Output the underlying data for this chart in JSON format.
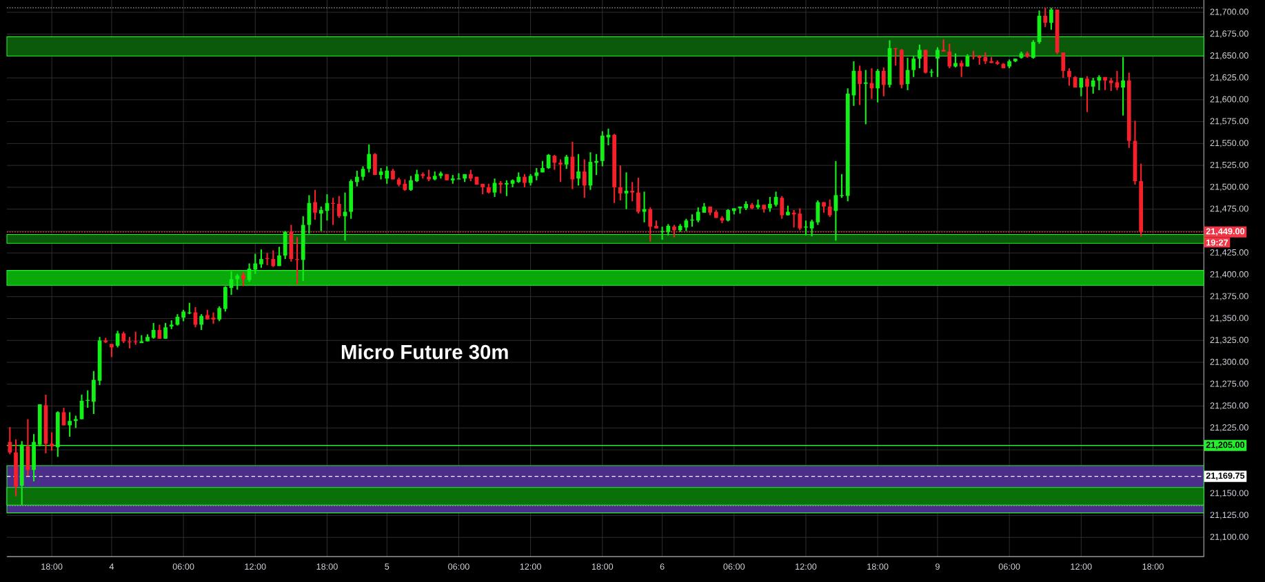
{
  "chart_data": {
    "type": "candlestick",
    "title": "Micro Future 30m",
    "categories": [
      null,
      null,
      null,
      null,
      null,
      null,
      null,
      "18:00",
      null,
      null,
      null,
      null,
      null,
      null,
      null,
      null,
      null,
      "4",
      null,
      null,
      null,
      null,
      null,
      null,
      null,
      null,
      null,
      null,
      null,
      "06:00",
      null,
      null,
      null,
      null,
      null,
      null,
      null,
      null,
      null,
      null,
      null,
      "12:00",
      null,
      null,
      null,
      null,
      null,
      null,
      null,
      null,
      null,
      null,
      null,
      "18:00",
      null,
      null,
      null,
      null,
      null,
      null,
      null,
      null,
      null,
      "5",
      null,
      null,
      null,
      null,
      null,
      null,
      null,
      null,
      null,
      null,
      null,
      "06:00",
      null,
      null,
      null,
      null,
      null,
      null,
      null,
      null,
      null,
      null,
      null,
      "12:00",
      null,
      null,
      null,
      null,
      null,
      null,
      null,
      null,
      null,
      null,
      null,
      "18:00",
      null,
      null,
      null,
      null,
      null,
      null,
      null,
      null,
      null,
      "6",
      null,
      null,
      null,
      null,
      null,
      null,
      null,
      null,
      null,
      null,
      null,
      "06:00",
      null,
      null,
      null,
      null,
      null,
      null,
      null,
      null,
      null,
      null,
      null,
      "12:00",
      null,
      null,
      null,
      null,
      null,
      null,
      null,
      null,
      null,
      null,
      null,
      "18:00",
      null,
      null,
      null,
      null,
      null,
      null,
      null,
      null,
      null,
      "9",
      null,
      null,
      null,
      null,
      null,
      null,
      null,
      null,
      null,
      null,
      null,
      "06:00",
      null,
      null,
      null,
      null,
      null,
      null,
      null,
      null,
      null,
      null,
      null,
      "12:00",
      null,
      null,
      null,
      null,
      null,
      null,
      null,
      null,
      null,
      null,
      null,
      "18:00",
      null,
      null,
      null,
      null,
      null,
      null,
      null,
      null
    ],
    "ohlc": [
      [
        21209,
        21226,
        21195,
        21197
      ],
      [
        21197,
        21212,
        21147,
        21158
      ],
      [
        21159,
        21210,
        21137,
        21206
      ],
      [
        21204,
        21235,
        21170,
        21177
      ],
      [
        21177,
        21218,
        21164,
        21209
      ],
      [
        21206,
        21252,
        21204,
        21252
      ],
      [
        21251,
        21263,
        21196,
        21207
      ],
      [
        21207,
        21220,
        21199,
        21204
      ],
      [
        21203,
        21244,
        21192,
        21243
      ],
      [
        21243,
        21248,
        21228,
        21228
      ],
      [
        21228,
        21243,
        21215,
        21233
      ],
      [
        21233,
        21239,
        21225,
        21235
      ],
      [
        21235,
        21263,
        21235,
        21256
      ],
      [
        21256,
        21268,
        21248,
        21257
      ],
      [
        21255,
        21290,
        21241,
        21280
      ],
      [
        21279,
        21329,
        21274,
        21325
      ],
      [
        21325,
        21328,
        21322,
        21323
      ],
      [
        21321,
        21321,
        21306,
        21317
      ],
      [
        21319,
        21336,
        21317,
        21333
      ],
      [
        21333,
        21335,
        21322,
        21324
      ],
      [
        21324,
        21329,
        21316,
        21323
      ],
      [
        21324,
        21335,
        21320,
        21323
      ],
      [
        21322,
        21331,
        21322,
        21324
      ],
      [
        21324,
        21332,
        21324,
        21329
      ],
      [
        21328,
        21345,
        21327,
        21337
      ],
      [
        21337,
        21343,
        21327,
        21327
      ],
      [
        21327,
        21345,
        21327,
        21340
      ],
      [
        21341,
        21348,
        21338,
        21343
      ],
      [
        21343,
        21355,
        21342,
        21352
      ],
      [
        21351,
        21360,
        21347,
        21358
      ],
      [
        21356,
        21368,
        21355,
        21357
      ],
      [
        21357,
        21363,
        21340,
        21343
      ],
      [
        21343,
        21355,
        21337,
        21353
      ],
      [
        21354,
        21360,
        21349,
        21349
      ],
      [
        21351,
        21357,
        21344,
        21349
      ],
      [
        21349,
        21364,
        21347,
        21362
      ],
      [
        21361,
        21387,
        21358,
        21386
      ],
      [
        21385,
        21404,
        21377,
        21395
      ],
      [
        21395,
        21401,
        21383,
        21399
      ],
      [
        21400,
        21403,
        21387,
        21395
      ],
      [
        21394,
        21413,
        21392,
        21407
      ],
      [
        21406,
        21424,
        21401,
        21413
      ],
      [
        21412,
        21429,
        21408,
        21418
      ],
      [
        21419,
        21425,
        21411,
        21418
      ],
      [
        21418,
        21428,
        21409,
        21410
      ],
      [
        21410,
        21432,
        21410,
        21422
      ],
      [
        21422,
        21450,
        21418,
        21449
      ],
      [
        21449,
        21457,
        21415,
        21418
      ],
      [
        21418,
        21443,
        21389,
        21417
      ],
      [
        21417,
        21467,
        21393,
        21457
      ],
      [
        21457,
        21491,
        21447,
        21482
      ],
      [
        21483,
        21497,
        21463,
        21471
      ],
      [
        21470,
        21478,
        21450,
        21474
      ],
      [
        21473,
        21492,
        21462,
        21482
      ],
      [
        21482,
        21488,
        21457,
        21481
      ],
      [
        21481,
        21490,
        21465,
        21467
      ],
      [
        21467,
        21494,
        21439,
        21472
      ],
      [
        21472,
        21509,
        21464,
        21507
      ],
      [
        21506,
        21519,
        21501,
        21512
      ],
      [
        21512,
        21524,
        21508,
        21521
      ],
      [
        21521,
        21549,
        21517,
        21538
      ],
      [
        21538,
        21539,
        21514,
        21514
      ],
      [
        21514,
        21522,
        21509,
        21518
      ],
      [
        21510,
        21524,
        21504,
        21519
      ],
      [
        21519,
        21521,
        21509,
        21509
      ],
      [
        21509,
        21511,
        21501,
        21503
      ],
      [
        21504,
        21509,
        21496,
        21497
      ],
      [
        21497,
        21513,
        21496,
        21508
      ],
      [
        21507,
        21520,
        21506,
        21515
      ],
      [
        21515,
        21517,
        21510,
        21513
      ],
      [
        21512,
        21520,
        21507,
        21509
      ],
      [
        21509,
        21518,
        21508,
        21513
      ],
      [
        21513,
        21518,
        21510,
        21516
      ],
      [
        21515,
        21515,
        21508,
        21508
      ],
      [
        21508,
        21514,
        21504,
        21510
      ],
      [
        21509,
        21516,
        21509,
        21510
      ],
      [
        21510,
        21515,
        21506,
        21515
      ],
      [
        21515,
        21520,
        21507,
        21510
      ],
      [
        21512,
        21512,
        21503,
        21503
      ],
      [
        21504,
        21504,
        21492,
        21500
      ],
      [
        21500,
        21504,
        21493,
        21494
      ],
      [
        21494,
        21510,
        21489,
        21505
      ],
      [
        21505,
        21507,
        21493,
        21503
      ],
      [
        21504,
        21508,
        21490,
        21504
      ],
      [
        21504,
        21509,
        21500,
        21508
      ],
      [
        21506,
        21517,
        21505,
        21512
      ],
      [
        21512,
        21515,
        21500,
        21505
      ],
      [
        21505,
        21515,
        21502,
        21513
      ],
      [
        21513,
        21522,
        21508,
        21517
      ],
      [
        21517,
        21530,
        21517,
        21522
      ],
      [
        21522,
        21538,
        21521,
        21537
      ],
      [
        21536,
        21537,
        21520,
        21528
      ],
      [
        21528,
        21532,
        21506,
        21526
      ],
      [
        21526,
        21537,
        21521,
        21535
      ],
      [
        21535,
        21552,
        21498,
        21509
      ],
      [
        21510,
        21538,
        21502,
        21518
      ],
      [
        21518,
        21532,
        21488,
        21502
      ],
      [
        21502,
        21540,
        21497,
        21529
      ],
      [
        21528,
        21538,
        21514,
        21530
      ],
      [
        21530,
        21564,
        21524,
        21559
      ],
      [
        21557,
        21567,
        21548,
        21560
      ],
      [
        21560,
        21561,
        21482,
        21500
      ],
      [
        21500,
        21525,
        21485,
        21493
      ],
      [
        21493,
        21517,
        21475,
        21496
      ],
      [
        21496,
        21506,
        21484,
        21494
      ],
      [
        21494,
        21511,
        21470,
        21472
      ],
      [
        21472,
        21495,
        21460,
        21475
      ],
      [
        21475,
        21477,
        21438,
        21455
      ],
      [
        21456,
        21462,
        21453,
        21453
      ],
      [
        21449,
        21455,
        21440,
        21450
      ],
      [
        21449,
        21458,
        21445,
        21456
      ],
      [
        21455,
        21457,
        21443,
        21451
      ],
      [
        21451,
        21458,
        21449,
        21456
      ],
      [
        21454,
        21464,
        21450,
        21462
      ],
      [
        21462,
        21469,
        21455,
        21463
      ],
      [
        21462,
        21477,
        21460,
        21472
      ],
      [
        21471,
        21482,
        21471,
        21478
      ],
      [
        21478,
        21478,
        21468,
        21471
      ],
      [
        21472,
        21474,
        21465,
        21465
      ],
      [
        21465,
        21467,
        21459,
        21462
      ],
      [
        21462,
        21475,
        21461,
        21474
      ],
      [
        21473,
        21476,
        21469,
        21476
      ],
      [
        21476,
        21478,
        21470,
        21478
      ],
      [
        21476,
        21484,
        21474,
        21481
      ],
      [
        21480,
        21482,
        21475,
        21476
      ],
      [
        21477,
        21486,
        21475,
        21480
      ],
      [
        21480,
        21480,
        21471,
        21475
      ],
      [
        21476,
        21489,
        21472,
        21481
      ],
      [
        21480,
        21495,
        21478,
        21489
      ],
      [
        21488,
        21490,
        21464,
        21468
      ],
      [
        21468,
        21479,
        21468,
        21472
      ],
      [
        21471,
        21474,
        21454,
        21469
      ],
      [
        21470,
        21476,
        21451,
        21453
      ],
      [
        21454,
        21462,
        21445,
        21455
      ],
      [
        21453,
        21463,
        21444,
        21461
      ],
      [
        21460,
        21485,
        21457,
        21483
      ],
      [
        21483,
        21483,
        21471,
        21478
      ],
      [
        21478,
        21486,
        21466,
        21468
      ],
      [
        21473,
        21530,
        21439,
        21491
      ],
      [
        21490,
        21515,
        21488,
        21491
      ],
      [
        21490,
        21613,
        21484,
        21607
      ],
      [
        21605,
        21644,
        21593,
        21633
      ],
      [
        21633,
        21639,
        21594,
        21618
      ],
      [
        21619,
        21634,
        21572,
        21619
      ],
      [
        21619,
        21636,
        21601,
        21613
      ],
      [
        21613,
        21635,
        21597,
        21633
      ],
      [
        21633,
        21637,
        21604,
        21617
      ],
      [
        21617,
        21668,
        21614,
        21659
      ],
      [
        21659,
        21659,
        21639,
        21658
      ],
      [
        21657,
        21658,
        21613,
        21617
      ],
      [
        21618,
        21648,
        21611,
        21634
      ],
      [
        21634,
        21650,
        21626,
        21647
      ],
      [
        21647,
        21663,
        21636,
        21657
      ],
      [
        21657,
        21657,
        21630,
        21631
      ],
      [
        21631,
        21635,
        21626,
        21632
      ],
      [
        21647,
        21660,
        21626,
        21657
      ],
      [
        21657,
        21669,
        21655,
        21655
      ],
      [
        21655,
        21664,
        21636,
        21638
      ],
      [
        21638,
        21653,
        21637,
        21642
      ],
      [
        21642,
        21645,
        21626,
        21638
      ],
      [
        21638,
        21652,
        21638,
        21650
      ],
      [
        21650,
        21656,
        21646,
        21649
      ],
      [
        21650,
        21651,
        21640,
        21648
      ],
      [
        21649,
        21654,
        21641,
        21644
      ],
      [
        21644,
        21649,
        21642,
        21642
      ],
      [
        21643,
        21645,
        21640,
        21641
      ],
      [
        21641,
        21642,
        21636,
        21636
      ],
      [
        21638,
        21646,
        21636,
        21644
      ],
      [
        21644,
        21647,
        21643,
        21647
      ],
      [
        21648,
        21655,
        21647,
        21653
      ],
      [
        21653,
        21655,
        21648,
        21649
      ],
      [
        21648,
        21668,
        21647,
        21666
      ],
      [
        21666,
        21702,
        21664,
        21696
      ],
      [
        21696,
        21705,
        21683,
        21688
      ],
      [
        21688,
        21705,
        21680,
        21703
      ],
      [
        21703,
        21703,
        21652,
        21654
      ],
      [
        21654,
        21654,
        21625,
        21633
      ],
      [
        21633,
        21636,
        21616,
        21626
      ],
      [
        21626,
        21627,
        21614,
        21614
      ],
      [
        21614,
        21625,
        21604,
        21625
      ],
      [
        21624,
        21627,
        21586,
        21615
      ],
      [
        21615,
        21625,
        21607,
        21622
      ],
      [
        21622,
        21628,
        21611,
        21626
      ],
      [
        21626,
        21626,
        21611,
        21622
      ],
      [
        21622,
        21625,
        21610,
        21619
      ],
      [
        21620,
        21633,
        21611,
        21614
      ],
      [
        21614,
        21649,
        21582,
        21622
      ],
      [
        21622,
        21631,
        21545,
        21553
      ],
      [
        21553,
        21576,
        21503,
        21507
      ],
      [
        21507,
        21527,
        21444,
        21449
      ],
      null,
      null,
      null,
      null,
      null,
      null,
      null,
      null,
      null,
      null
    ],
    "colors": [
      "#f5202a",
      "#f5202a",
      "#12f018",
      "#f5202a",
      "#12f018",
      "#12f018",
      "#f5202a",
      "#f5202a",
      "#12f018",
      "#f5202a",
      "#12f018",
      "#12f018",
      "#12f018",
      "#12f018",
      "#12f018",
      "#12f018",
      "#f5202a",
      "#f5202a",
      "#12f018",
      "#f5202a",
      "#f5202a",
      "#f5202a",
      "#12f018",
      "#12f018",
      "#12f018",
      "#f5202a",
      "#12f018",
      "#12f018",
      "#12f018",
      "#12f018",
      "#12f018",
      "#f5202a",
      "#12f018",
      "#f5202a",
      "#f5202a",
      "#12f018",
      "#12f018",
      "#12f018",
      "#12f018",
      "#f5202a",
      "#12f018",
      "#12f018",
      "#12f018",
      "#f5202a",
      "#f5202a",
      "#12f018",
      "#12f018",
      "#f5202a",
      "#f5202a",
      "#12f018",
      "#12f018",
      "#f5202a",
      "#12f018",
      "#12f018",
      "#f5202a",
      "#f5202a",
      "#12f018",
      "#12f018",
      "#12f018",
      "#12f018",
      "#12f018",
      "#f5202a",
      "#12f018",
      "#12f018",
      "#f5202a",
      "#f5202a",
      "#f5202a",
      "#12f018",
      "#12f018",
      "#f5202a",
      "#f5202a",
      "#12f018",
      "#12f018",
      "#f5202a",
      "#12f018",
      "#12f018",
      "#12f018",
      "#f5202a",
      "#f5202a",
      "#f5202a",
      "#f5202a",
      "#12f018",
      "#f5202a",
      "#12f018",
      "#12f018",
      "#12f018",
      "#f5202a",
      "#12f018",
      "#12f018",
      "#12f018",
      "#12f018",
      "#f5202a",
      "#f5202a",
      "#12f018",
      "#f5202a",
      "#12f018",
      "#f5202a",
      "#12f018",
      "#12f018",
      "#12f018",
      "#12f018",
      "#f5202a",
      "#f5202a",
      "#12f018",
      "#f5202a",
      "#f5202a",
      "#12f018",
      "#f5202a",
      "#f5202a",
      "#12f018",
      "#12f018",
      "#f5202a",
      "#12f018",
      "#12f018",
      "#12f018",
      "#12f018",
      "#12f018",
      "#f5202a",
      "#f5202a",
      "#f5202a",
      "#12f018",
      "#12f018",
      "#12f018",
      "#12f018",
      "#f5202a",
      "#12f018",
      "#f5202a",
      "#12f018",
      "#12f018",
      "#f5202a",
      "#12f018",
      "#f5202a",
      "#f5202a",
      "#12f018",
      "#12f018",
      "#12f018",
      "#f5202a",
      "#f5202a",
      "#12f018",
      "#12f018",
      "#12f018",
      "#12f018",
      "#f5202a",
      "#12f018",
      "#f5202a",
      "#12f018",
      "#f5202a",
      "#12f018",
      "#f5202a",
      "#f5202a",
      "#12f018",
      "#12f018",
      "#12f018",
      "#f5202a",
      "#12f018",
      "#12f018",
      "#f5202a",
      "#f5202a",
      "#12f018",
      "#f5202a",
      "#12f018",
      "#f5202a",
      "#f5202a",
      "#f5202a",
      "#f5202a",
      "#f5202a",
      "#f5202a",
      "#12f018",
      "#12f018",
      "#12f018",
      "#f5202a",
      "#12f018",
      "#12f018",
      "#f5202a",
      "#12f018",
      "#f5202a",
      "#f5202a",
      "#f5202a",
      "#f5202a",
      "#12f018",
      "#f5202a",
      "#12f018",
      "#12f018",
      "#f5202a",
      "#f5202a",
      "#f5202a",
      "#12f018",
      "#f5202a",
      "#f5202a",
      "#f5202a",
      null,
      null,
      null,
      null,
      null,
      null,
      null,
      null,
      null,
      null
    ],
    "ylim": [
      21078,
      21714
    ],
    "yticks": [
      {
        "value": 21100,
        "label": "21,100.00"
      },
      {
        "value": 21125,
        "label": "21,125.00"
      },
      {
        "value": 21150,
        "label": "21,150.00"
      },
      {
        "value": 21175,
        "label": null
      },
      {
        "value": 21200,
        "label": null
      },
      {
        "value": 21225,
        "label": "21,225.00"
      },
      {
        "value": 21250,
        "label": "21,250.00"
      },
      {
        "value": 21275,
        "label": "21,275.00"
      },
      {
        "value": 21300,
        "label": "21,300.00"
      },
      {
        "value": 21325,
        "label": "21,325.00"
      },
      {
        "value": 21350,
        "label": "21,350.00"
      },
      {
        "value": 21375,
        "label": "21,375.00"
      },
      {
        "value": 21400,
        "label": "21,400.00"
      },
      {
        "value": 21425,
        "label": "21,425.00"
      },
      {
        "value": 21450,
        "label": null
      },
      {
        "value": 21475,
        "label": "21,475.00"
      },
      {
        "value": 21500,
        "label": "21,500.00"
      },
      {
        "value": 21525,
        "label": "21,525.00"
      },
      {
        "value": 21550,
        "label": "21,550.00"
      },
      {
        "value": 21575,
        "label": "21,575.00"
      },
      {
        "value": 21600,
        "label": "21,600.00"
      },
      {
        "value": 21625,
        "label": "21,625.00"
      },
      {
        "value": 21650,
        "label": "21,650.00"
      },
      {
        "value": 21675,
        "label": "21,675.00"
      },
      {
        "value": 21700,
        "label": "21,700.00"
      }
    ],
    "grid": true,
    "bands": [
      {
        "axis": "y",
        "from": 21128,
        "to": 21182,
        "color": "#4b2d8c"
      },
      {
        "axis": "y",
        "from": 21137,
        "to": 21157,
        "color": "#0a700a"
      },
      {
        "axis": "y",
        "from": 21388,
        "to": 21405,
        "color": "#0aa80a"
      },
      {
        "axis": "y",
        "from": 21436,
        "to": 21446,
        "color": "#0b5a0b"
      },
      {
        "axis": "y",
        "from": 21650,
        "to": 21672,
        "color": "#0b5a0b"
      }
    ],
    "ref_lines": [
      {
        "axis": "y",
        "value": 21449,
        "label": "21,449.00",
        "color": "#f23645",
        "line_style": "dotted"
      },
      {
        "axis": "y",
        "value": 21205,
        "label": "21,205.00",
        "color": "#22f02a",
        "line_style": "solid"
      },
      {
        "axis": "y",
        "value": 21169.75,
        "label": "21,169.75",
        "color": "#ffffff",
        "line_style": "dashed"
      },
      {
        "axis": "y",
        "value": 21705,
        "color": "#9598a1",
        "line_style": "dotted"
      },
      {
        "axis": "y",
        "value": 21136,
        "color": "#9598a1",
        "line_style": "dotted"
      }
    ],
    "annotations": [
      "19:27"
    ]
  }
}
